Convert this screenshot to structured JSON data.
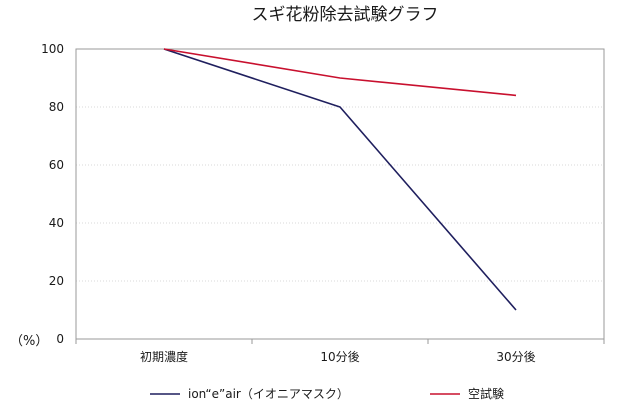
{
  "chart_data": {
    "type": "line",
    "title": "スギ花粉除去試験グラフ",
    "ylabel": "（%）",
    "categories": [
      "初期濃度",
      "10分後",
      "30分後"
    ],
    "ylim": [
      0,
      100
    ],
    "yticks": [
      0,
      20,
      40,
      60,
      80,
      100
    ],
    "grid": true,
    "legend_position": "bottom",
    "series": [
      {
        "name": "ion“e”air（イオニアマスク）",
        "color": "#1f1f5e",
        "values": [
          100,
          80,
          10
        ]
      },
      {
        "name": "空試験",
        "color": "#c8102e",
        "values": [
          100,
          90,
          84
        ]
      }
    ]
  }
}
